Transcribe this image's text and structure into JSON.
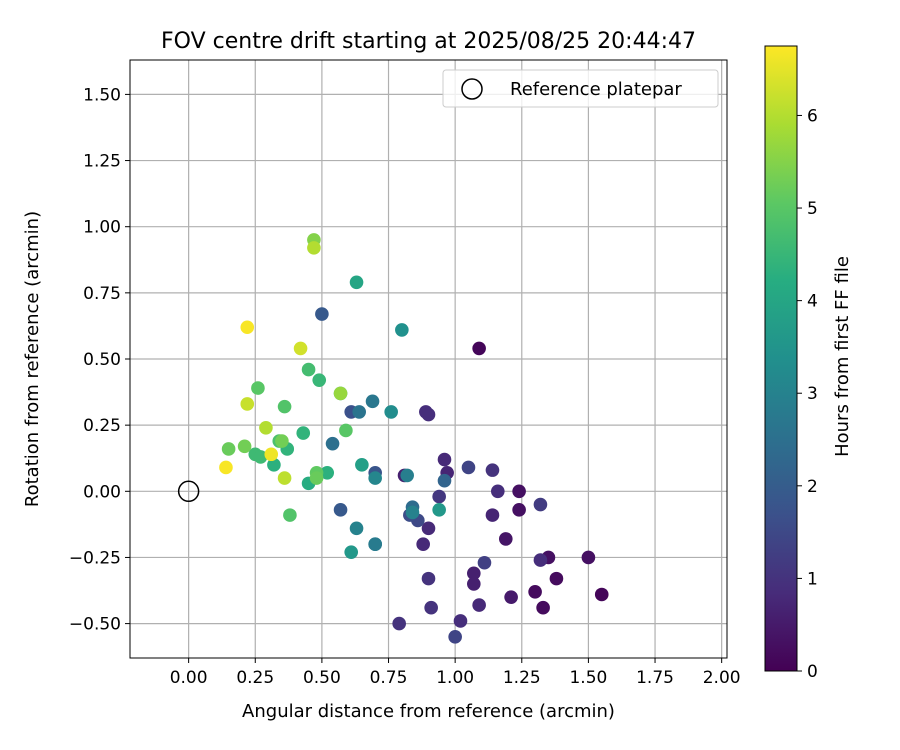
{
  "chart_data": {
    "type": "scatter",
    "title": "FOV centre drift starting at 2025/08/25 20:44:47",
    "xlabel": "Angular distance from reference (arcmin)",
    "ylabel": "Rotation from reference (arcmin)",
    "xlim": [
      -0.22,
      2.02
    ],
    "ylim": [
      -0.63,
      1.63
    ],
    "x_ticks": [
      0.0,
      0.25,
      0.5,
      0.75,
      1.0,
      1.25,
      1.5,
      1.75,
      2.0
    ],
    "x_tick_labels": [
      "0.00",
      "0.25",
      "0.50",
      "0.75",
      "1.00",
      "1.25",
      "1.50",
      "1.75",
      "2.00"
    ],
    "y_ticks": [
      -0.5,
      -0.25,
      0.0,
      0.25,
      0.5,
      0.75,
      1.0,
      1.25,
      1.5
    ],
    "y_tick_labels": [
      "−0.50",
      "−0.25",
      "0.00",
      "0.25",
      "0.50",
      "0.75",
      "1.00",
      "1.25",
      "1.50"
    ],
    "grid": true,
    "colormap": "viridis",
    "colorbar": {
      "label": "Hours from first FF file",
      "range": [
        0,
        6.75
      ],
      "ticks": [
        0,
        1,
        2,
        3,
        4,
        5,
        6
      ],
      "tick_labels": [
        "0",
        "1",
        "2",
        "3",
        "4",
        "5",
        "6"
      ]
    },
    "legend": {
      "placement": "top-right",
      "entries": [
        {
          "label": "Reference platepar",
          "marker": "open-circle"
        }
      ]
    },
    "reference_point": {
      "x": 0.0,
      "y": 0.0
    },
    "points": [
      {
        "x": 1.09,
        "y": 0.54,
        "hours": 0.1
      },
      {
        "x": 1.55,
        "y": -0.39,
        "hours": 0.1
      },
      {
        "x": 1.38,
        "y": -0.33,
        "hours": 0.2
      },
      {
        "x": 1.33,
        "y": -0.44,
        "hours": 0.2
      },
      {
        "x": 1.3,
        "y": -0.38,
        "hours": 0.2
      },
      {
        "x": 1.35,
        "y": -0.25,
        "hours": 0.3
      },
      {
        "x": 1.5,
        "y": -0.25,
        "hours": 0.3
      },
      {
        "x": 1.24,
        "y": 0.0,
        "hours": 0.3
      },
      {
        "x": 1.24,
        "y": -0.07,
        "hours": 0.3
      },
      {
        "x": 1.19,
        "y": -0.18,
        "hours": 0.4
      },
      {
        "x": 1.21,
        "y": -0.4,
        "hours": 0.5
      },
      {
        "x": 1.07,
        "y": -0.31,
        "hours": 0.6
      },
      {
        "x": 1.07,
        "y": -0.35,
        "hours": 0.6
      },
      {
        "x": 0.81,
        "y": 0.06,
        "hours": 0.6
      },
      {
        "x": 0.97,
        "y": 0.07,
        "hours": 0.7
      },
      {
        "x": 1.14,
        "y": -0.09,
        "hours": 0.7
      },
      {
        "x": 1.09,
        "y": -0.43,
        "hours": 0.8
      },
      {
        "x": 0.96,
        "y": 0.12,
        "hours": 0.8
      },
      {
        "x": 0.88,
        "y": -0.2,
        "hours": 0.8
      },
      {
        "x": 0.9,
        "y": -0.14,
        "hours": 0.8
      },
      {
        "x": 1.02,
        "y": -0.49,
        "hours": 0.9
      },
      {
        "x": 1.32,
        "y": -0.26,
        "hours": 0.9
      },
      {
        "x": 1.16,
        "y": 0.0,
        "hours": 0.9
      },
      {
        "x": 0.89,
        "y": 0.3,
        "hours": 0.9
      },
      {
        "x": 0.9,
        "y": 0.29,
        "hours": 0.9
      },
      {
        "x": 1.14,
        "y": 0.08,
        "hours": 1.0
      },
      {
        "x": 0.9,
        "y": -0.33,
        "hours": 1.0
      },
      {
        "x": 0.91,
        "y": -0.44,
        "hours": 1.0
      },
      {
        "x": 0.79,
        "y": -0.5,
        "hours": 1.0
      },
      {
        "x": 0.94,
        "y": -0.02,
        "hours": 1.1
      },
      {
        "x": 1.32,
        "y": -0.05,
        "hours": 1.2
      },
      {
        "x": 1.11,
        "y": -0.27,
        "hours": 1.3
      },
      {
        "x": 1.0,
        "y": -0.55,
        "hours": 1.4
      },
      {
        "x": 1.05,
        "y": 0.09,
        "hours": 1.4
      },
      {
        "x": 0.86,
        "y": -0.11,
        "hours": 1.5
      },
      {
        "x": 0.83,
        "y": -0.09,
        "hours": 1.6
      },
      {
        "x": 0.61,
        "y": 0.3,
        "hours": 1.7
      },
      {
        "x": 0.7,
        "y": 0.07,
        "hours": 1.8
      },
      {
        "x": 0.57,
        "y": -0.07,
        "hours": 1.9
      },
      {
        "x": 0.5,
        "y": 0.67,
        "hours": 1.9
      },
      {
        "x": 0.96,
        "y": 0.04,
        "hours": 2.2
      },
      {
        "x": 0.84,
        "y": -0.06,
        "hours": 2.4
      },
      {
        "x": 0.54,
        "y": 0.18,
        "hours": 2.5
      },
      {
        "x": 0.64,
        "y": 0.3,
        "hours": 2.6
      },
      {
        "x": 0.69,
        "y": 0.34,
        "hours": 2.7
      },
      {
        "x": 0.7,
        "y": -0.2,
        "hours": 2.8
      },
      {
        "x": 0.7,
        "y": -0.2,
        "hours": 2.8
      },
      {
        "x": 0.82,
        "y": 0.06,
        "hours": 2.9
      },
      {
        "x": 0.63,
        "y": -0.14,
        "hours": 3.0
      },
      {
        "x": 0.84,
        "y": -0.08,
        "hours": 3.0
      },
      {
        "x": 0.7,
        "y": 0.05,
        "hours": 3.1
      },
      {
        "x": 0.76,
        "y": 0.3,
        "hours": 3.3
      },
      {
        "x": 0.8,
        "y": 0.61,
        "hours": 3.4
      },
      {
        "x": 0.61,
        "y": -0.23,
        "hours": 3.6
      },
      {
        "x": 0.94,
        "y": -0.07,
        "hours": 3.6
      },
      {
        "x": 0.65,
        "y": 0.1,
        "hours": 3.8
      },
      {
        "x": 0.63,
        "y": 0.79,
        "hours": 4.0
      },
      {
        "x": 0.57,
        "y": 0.37,
        "hours": 4.1
      },
      {
        "x": 0.45,
        "y": 0.03,
        "hours": 4.2
      },
      {
        "x": 0.52,
        "y": 0.07,
        "hours": 4.3
      },
      {
        "x": 0.32,
        "y": 0.1,
        "hours": 4.3
      },
      {
        "x": 0.37,
        "y": 0.16,
        "hours": 4.4
      },
      {
        "x": 0.43,
        "y": 0.22,
        "hours": 4.4
      },
      {
        "x": 0.49,
        "y": 0.42,
        "hours": 4.5
      },
      {
        "x": 0.25,
        "y": 0.14,
        "hours": 4.6
      },
      {
        "x": 0.27,
        "y": 0.13,
        "hours": 4.6
      },
      {
        "x": 0.45,
        "y": 0.46,
        "hours": 4.7
      },
      {
        "x": 0.34,
        "y": 0.19,
        "hours": 4.8
      },
      {
        "x": 0.36,
        "y": 0.32,
        "hours": 4.9
      },
      {
        "x": 0.38,
        "y": -0.09,
        "hours": 4.9
      },
      {
        "x": 0.26,
        "y": 0.39,
        "hours": 5.0
      },
      {
        "x": 0.59,
        "y": 0.23,
        "hours": 5.0
      },
      {
        "x": 0.48,
        "y": 0.07,
        "hours": 5.1
      },
      {
        "x": 0.48,
        "y": 0.05,
        "hours": 5.2
      },
      {
        "x": 0.15,
        "y": 0.16,
        "hours": 5.2
      },
      {
        "x": 0.21,
        "y": 0.17,
        "hours": 5.3
      },
      {
        "x": 0.35,
        "y": 0.19,
        "hours": 5.3
      },
      {
        "x": 0.47,
        "y": 0.95,
        "hours": 5.5
      },
      {
        "x": 0.57,
        "y": 0.37,
        "hours": 5.7
      },
      {
        "x": 0.47,
        "y": 0.92,
        "hours": 6.0
      },
      {
        "x": 0.29,
        "y": 0.24,
        "hours": 6.0
      },
      {
        "x": 0.36,
        "y": 0.05,
        "hours": 6.1
      },
      {
        "x": 0.22,
        "y": 0.33,
        "hours": 6.2
      },
      {
        "x": 0.42,
        "y": 0.54,
        "hours": 6.3
      },
      {
        "x": 0.31,
        "y": 0.14,
        "hours": 6.6
      },
      {
        "x": 0.22,
        "y": 0.62,
        "hours": 6.7
      },
      {
        "x": 0.14,
        "y": 0.09,
        "hours": 6.7
      }
    ]
  }
}
